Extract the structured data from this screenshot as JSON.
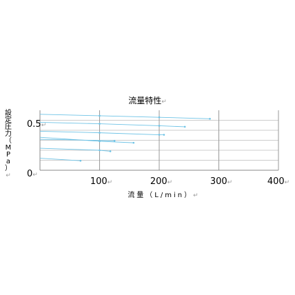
{
  "chart_data": {
    "type": "line",
    "title": "流量特性",
    "xlabel": "流量（L/min）",
    "ylabel": "設定圧力（MPa）",
    "return_mark": "↵",
    "xlim": [
      0,
      400
    ],
    "ylim": [
      0,
      0.6
    ],
    "x_ticks": [
      "100",
      "200",
      "300",
      "400"
    ],
    "y_ticks": [
      {
        "label": "0",
        "value": 0
      },
      {
        "label": "0.5",
        "value": 0.5
      }
    ],
    "x_grid": [
      100,
      200,
      300,
      400
    ],
    "y_grid": [
      0.1,
      0.2,
      0.3,
      0.4,
      0.5
    ],
    "colors": {
      "series": "#6ec3e6",
      "grid": "#bbbbbb",
      "axis": "#888888"
    },
    "series": [
      {
        "x": [
          0,
          100,
          200,
          285
        ],
        "y": [
          0.56,
          0.545,
          0.53,
          0.515
        ]
      },
      {
        "x": [
          0,
          100,
          200,
          243
        ],
        "y": [
          0.48,
          0.465,
          0.445,
          0.435
        ]
      },
      {
        "x": [
          0,
          100,
          200,
          208
        ],
        "y": [
          0.39,
          0.375,
          0.355,
          0.355
        ]
      },
      {
        "x": [
          0,
          100,
          157
        ],
        "y": [
          0.33,
          0.29,
          0.275
        ]
      },
      {
        "x": [
          0,
          100,
          118
        ],
        "y": [
          0.22,
          0.2,
          0.19
        ]
      },
      {
        "x": [
          0,
          68
        ],
        "y": [
          0.12,
          0.095
        ]
      },
      {
        "x": [
          0,
          125
        ],
        "y": [
          0.31,
          0.295
        ]
      }
    ]
  }
}
